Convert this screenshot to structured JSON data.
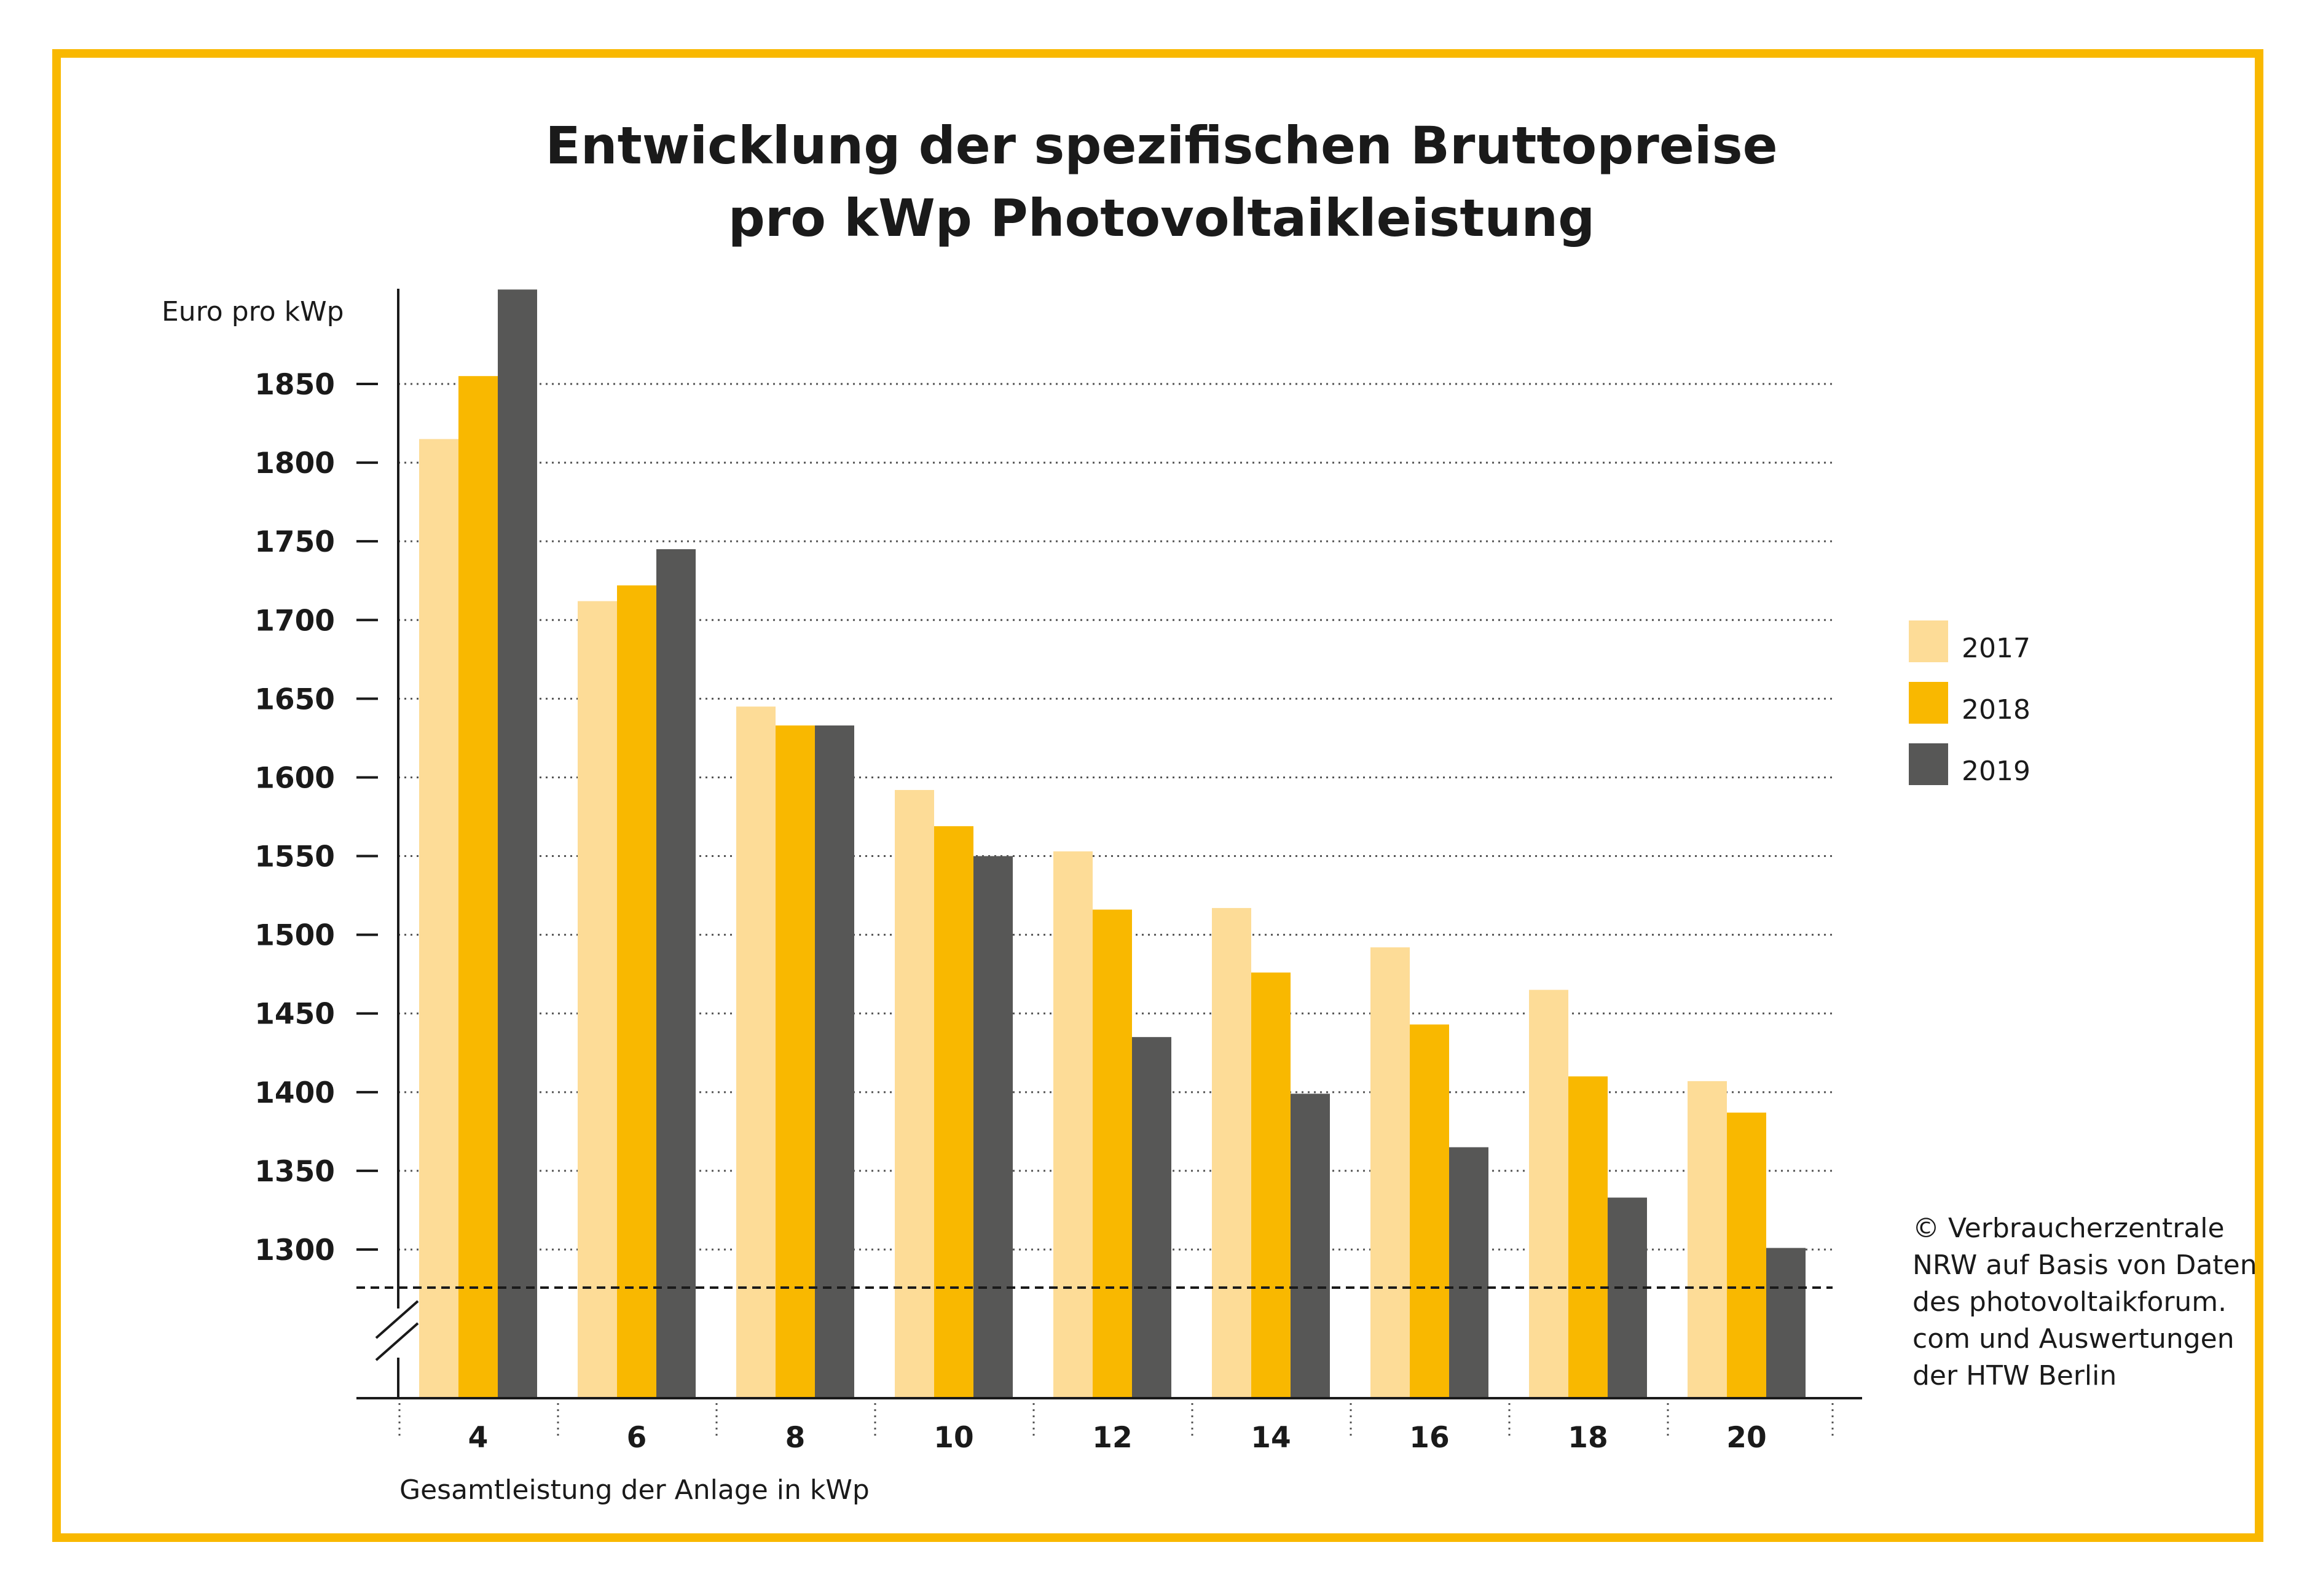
{
  "title": {
    "line1": "Entwicklung der spezifischen Bruttopreise",
    "line2": "pro kWp Photovoltaikleistung"
  },
  "source": {
    "line1": "© Verbraucherzentrale",
    "line2": "NRW auf Basis von Daten",
    "line3": "des photovoltaikforum.",
    "line4": "com und Auswertungen",
    "line5": "der HTW Berlin"
  },
  "colors": {
    "frame": "#f9b800",
    "series_2017": "#fddc97",
    "series_2018": "#f9b800",
    "series_2019": "#575756"
  },
  "chart_data": {
    "type": "bar",
    "title": "Entwicklung der spezifischen Bruttopreise pro kWp Photovoltaikleistung",
    "xlabel": "Gesamtleistung der Anlage in kWp",
    "ylabel": "Euro pro kWp",
    "categories": [
      "4",
      "6",
      "8",
      "10",
      "12",
      "14",
      "16",
      "18",
      "20"
    ],
    "yticks": [
      1300,
      1350,
      1400,
      1450,
      1500,
      1550,
      1600,
      1650,
      1700,
      1750,
      1800,
      1850
    ],
    "ylim": [
      1225,
      1910
    ],
    "axis_break": true,
    "grid": "horizontal dotted",
    "legend_position": "right",
    "series": [
      {
        "name": "2017",
        "values": [
          1815,
          1712,
          1645,
          1592,
          1553,
          1517,
          1492,
          1465,
          1407
        ]
      },
      {
        "name": "2018",
        "values": [
          1855,
          1722,
          1633,
          1569,
          1516,
          1476,
          1443,
          1410,
          1387
        ]
      },
      {
        "name": "2019",
        "values": [
          1910,
          1745,
          1633,
          1550,
          1435,
          1399,
          1365,
          1333,
          1301
        ]
      }
    ]
  }
}
